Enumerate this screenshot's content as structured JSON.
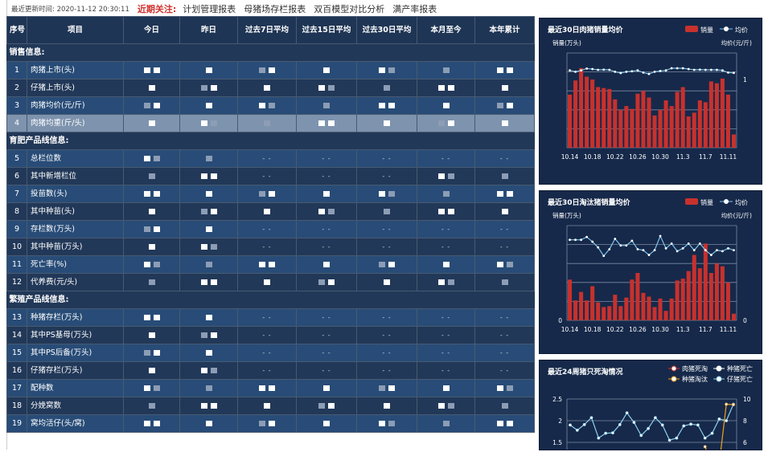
{
  "topbar": {
    "update_label": "最近更新时间:",
    "update_time": "2020-11-12 20:30:11",
    "focus_label": "近期关注:",
    "links": [
      "计划管理报表",
      "母猪场存栏报表",
      "双百模型对比分析",
      "满产率报表"
    ]
  },
  "table": {
    "columns": [
      "序号",
      "项目",
      "今日",
      "昨日",
      "过去7日平均",
      "过去15日平均",
      "过去30日平均",
      "本月至今",
      "本年累计"
    ],
    "sections": [
      {
        "title": "销售信息:",
        "rows": [
          {
            "no": "1",
            "item": "肉猪上市(头)",
            "cells": [
              "",
              "",
              "",
              "",
              "",
              "",
              ""
            ]
          },
          {
            "no": "2",
            "item": "仔猪上市(头)",
            "cells": [
              "",
              "",
              "",
              "",
              "",
              "",
              ""
            ]
          },
          {
            "no": "3",
            "item": "肉猪均价(元/斤)",
            "cells": [
              "",
              "",
              "",
              "",
              "",
              "",
              ""
            ]
          },
          {
            "no": "4",
            "item": "肉猪均重(斤/头)",
            "cells": [
              "",
              "",
              "",
              "",
              "",
              "",
              ""
            ],
            "highlight": true
          }
        ]
      },
      {
        "title": "育肥产品线信息:",
        "rows": [
          {
            "no": "5",
            "item": "总栏位数",
            "cells": [
              "",
              "",
              "- -",
              "- -",
              "- -",
              "- -",
              "- -"
            ]
          },
          {
            "no": "6",
            "item": "其中新增栏位",
            "cells": [
              "",
              "",
              "- -",
              "- -",
              "- -",
              "",
              ""
            ]
          },
          {
            "no": "7",
            "item": "投苗数(头)",
            "cells": [
              "",
              "",
              "",
              "",
              "",
              "",
              ""
            ]
          },
          {
            "no": "8",
            "item": "其中种苗(头)",
            "cells": [
              "",
              "",
              "",
              "",
              "",
              "",
              ""
            ]
          },
          {
            "no": "9",
            "item": "存栏数(万头)",
            "cells": [
              "",
              "",
              "- -",
              "- -",
              "- -",
              "- -",
              "- -"
            ]
          },
          {
            "no": "10",
            "item": "其中种苗(万头)",
            "cells": [
              "",
              "",
              "- -",
              "- -",
              "- -",
              "- -",
              "- -"
            ]
          },
          {
            "no": "11",
            "item": "死亡率(%)",
            "cells": [
              "",
              "",
              "",
              "",
              "",
              "",
              ""
            ]
          },
          {
            "no": "12",
            "item": "代养费(元/头)",
            "cells": [
              "",
              "",
              "",
              "",
              "",
              "",
              ""
            ]
          }
        ]
      },
      {
        "title": "繁殖产品线信息:",
        "rows": [
          {
            "no": "13",
            "item": "种猪存栏(万头)",
            "cells": [
              "",
              "",
              "- -",
              "- -",
              "- -",
              "- -",
              "- -"
            ]
          },
          {
            "no": "14",
            "item": "其中PS基母(万头)",
            "cells": [
              "",
              "",
              "- -",
              "- -",
              "- -",
              "- -",
              "- -"
            ]
          },
          {
            "no": "15",
            "item": "其中PS后备(万头)",
            "cells": [
              "",
              "",
              "- -",
              "- -",
              "- -",
              "- -",
              "- -"
            ]
          },
          {
            "no": "16",
            "item": "仔猪存栏(万头)",
            "cells": [
              "",
              "",
              "- -",
              "- -",
              "- -",
              "- -",
              "- -"
            ]
          },
          {
            "no": "17",
            "item": "配种数",
            "cells": [
              "",
              "",
              "",
              "",
              "",
              "",
              ""
            ]
          },
          {
            "no": "18",
            "item": "分娩窝数",
            "cells": [
              "",
              "",
              "",
              "",
              "",
              "",
              ""
            ]
          },
          {
            "no": "19",
            "item": "窝均活仔(头/窝)",
            "cells": [
              "",
              "",
              "",
              "",
              "",
              "",
              ""
            ]
          }
        ]
      }
    ]
  },
  "chart_data": [
    {
      "type": "bar+line",
      "title": "最近30日肉猪销量均价",
      "ylabel": "销量(万头)",
      "y2label": "均价(元/斤)",
      "legend": [
        "销量",
        "均价"
      ],
      "legend_position": "top-right",
      "y2_tick_labels": [
        "1"
      ],
      "x_tick_labels": [
        "10.14",
        "10.18",
        "10.22",
        "10.26",
        "10.30",
        "11.3",
        "11.7",
        "11.11"
      ],
      "series": [
        {
          "name": "销量",
          "type": "bar",
          "color": "#c8312d",
          "values": [
            0.56,
            0.71,
            0.84,
            0.75,
            0.72,
            0.64,
            0.63,
            0.62,
            0.51,
            0.4,
            0.44,
            0.41,
            0.57,
            0.6,
            0.53,
            0.34,
            0.4,
            0.5,
            0.44,
            0.59,
            0.64,
            0.33,
            0.37,
            0.5,
            0.48,
            0.7,
            0.68,
            0.73,
            0.56,
            0.14
          ]
        },
        {
          "name": "均价",
          "type": "line",
          "color": "#7fc4ec",
          "values": [
            0.816,
            0.802,
            0.816,
            0.836,
            0.83,
            0.822,
            0.824,
            0.822,
            0.802,
            0.788,
            0.802,
            0.807,
            0.816,
            0.793,
            0.779,
            0.802,
            0.81,
            0.816,
            0.839,
            0.839,
            0.839,
            0.83,
            0.822,
            0.824,
            0.822,
            0.822,
            0.822,
            0.816,
            0.793,
            0.79
          ]
        }
      ],
      "grid": true
    },
    {
      "type": "bar+line",
      "title": "最近30日淘汰猪销量均价",
      "ylabel": "销量(万头)",
      "y2label": "均价(元/斤)",
      "legend": [
        "销量",
        "均价"
      ],
      "legend_position": "top-right",
      "y_tick_labels": [
        "0"
      ],
      "y2_tick_labels": [
        "0"
      ],
      "x_tick_labels": [
        "10.14",
        "10.18",
        "10.22",
        "10.26",
        "10.30",
        "11.3",
        "11.7",
        "11.11"
      ],
      "series": [
        {
          "name": "销量",
          "type": "bar",
          "color": "#c8312d",
          "values": [
            0.43,
            0.21,
            0.3,
            0.21,
            0.36,
            0.19,
            0.14,
            0.15,
            0.27,
            0.15,
            0.24,
            0.43,
            0.5,
            0.29,
            0.25,
            0.14,
            0.23,
            0.1,
            0.23,
            0.42,
            0.44,
            0.52,
            0.69,
            0.55,
            0.81,
            0.5,
            0.6,
            0.57,
            0.4,
            0.07
          ]
        },
        {
          "name": "均价",
          "type": "line",
          "color": "#7fc4ec",
          "values": [
            0.85,
            0.85,
            0.85,
            0.88,
            0.83,
            0.77,
            0.68,
            0.75,
            0.86,
            0.79,
            0.79,
            0.84,
            0.75,
            0.74,
            0.69,
            0.74,
            0.89,
            0.76,
            0.81,
            0.73,
            0.76,
            0.81,
            0.74,
            0.81,
            0.74,
            0.69,
            0.74,
            0.73,
            0.76,
            0.74
          ]
        }
      ],
      "grid": true
    },
    {
      "type": "line",
      "title": "最近24周猪只死淘情况",
      "legend": [
        "肉猪死淘",
        "种猪死亡",
        "种猪淘汰",
        "仔猪死亡"
      ],
      "legend_position": "top-right",
      "y_tick_labels": [
        "2.5",
        "2",
        "1.5"
      ],
      "y2_tick_labels": [
        "10",
        "8",
        "6"
      ],
      "ylim": [
        1.5,
        2.5
      ],
      "y2lim": [
        6,
        10
      ],
      "series": [
        {
          "name": "仔猪死亡",
          "color": "#8fd0f0",
          "values": [
            1.9,
            1.78,
            1.91,
            2.07,
            1.6,
            1.71,
            1.72,
            1.91,
            2.18,
            1.96,
            1.66,
            1.82,
            2.07,
            1.9,
            1.55,
            1.6,
            1.88,
            1.92,
            1.9,
            1.6,
            1.71,
            2.04,
            2.0,
            2.38
          ]
        },
        {
          "name": "种猪淘汰",
          "color": "#f0a020",
          "values": [
            null,
            null,
            null,
            null,
            null,
            null,
            null,
            null,
            null,
            null,
            null,
            null,
            null,
            null,
            null,
            null,
            null,
            null,
            null,
            1.4,
            1.0,
            1.0,
            2.38,
            2.37
          ]
        }
      ],
      "legend_colors": {
        "肉猪死淘": "#c8312d",
        "种猪死亡": "#ffffff",
        "种猪淘汰": "#f0a020",
        "仔猪死亡": "#8fd0f0"
      },
      "grid": true
    }
  ]
}
